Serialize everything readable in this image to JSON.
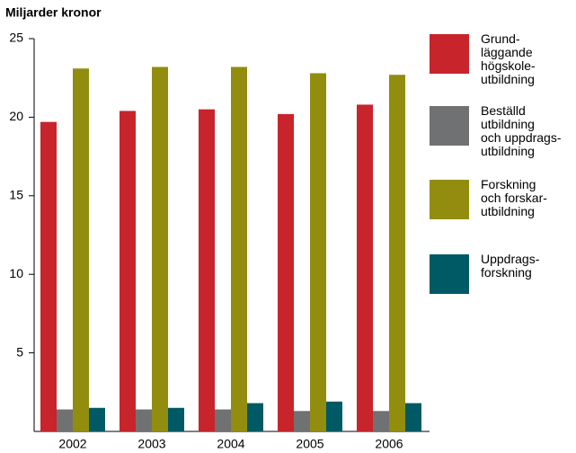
{
  "chart_data": {
    "type": "bar",
    "title": "Miljarder kronor",
    "categories": [
      "2002",
      "2003",
      "2004",
      "2005",
      "2006"
    ],
    "series": [
      {
        "name": "Grund-\nläggande\nhögskole-\nutbildning",
        "color": "#c8242b",
        "values": [
          19.7,
          20.4,
          20.5,
          20.2,
          20.8
        ]
      },
      {
        "name": "Beställd\nutbildning\noch uppdrags-\nutbildning",
        "color": "#707173",
        "values": [
          1.4,
          1.4,
          1.4,
          1.3,
          1.3
        ]
      },
      {
        "name": "Forskning\noch forskar-\nutbildning",
        "color": "#938d0f",
        "values": [
          23.1,
          23.2,
          23.2,
          22.8,
          22.7
        ]
      },
      {
        "name": "Uppdrags-\nforskning",
        "color": "#005a65",
        "values": [
          1.5,
          1.5,
          1.8,
          1.9,
          1.8
        ]
      }
    ],
    "ylim": [
      0,
      25
    ],
    "yticks": [
      5,
      10,
      15,
      20,
      25
    ],
    "grid": false
  }
}
